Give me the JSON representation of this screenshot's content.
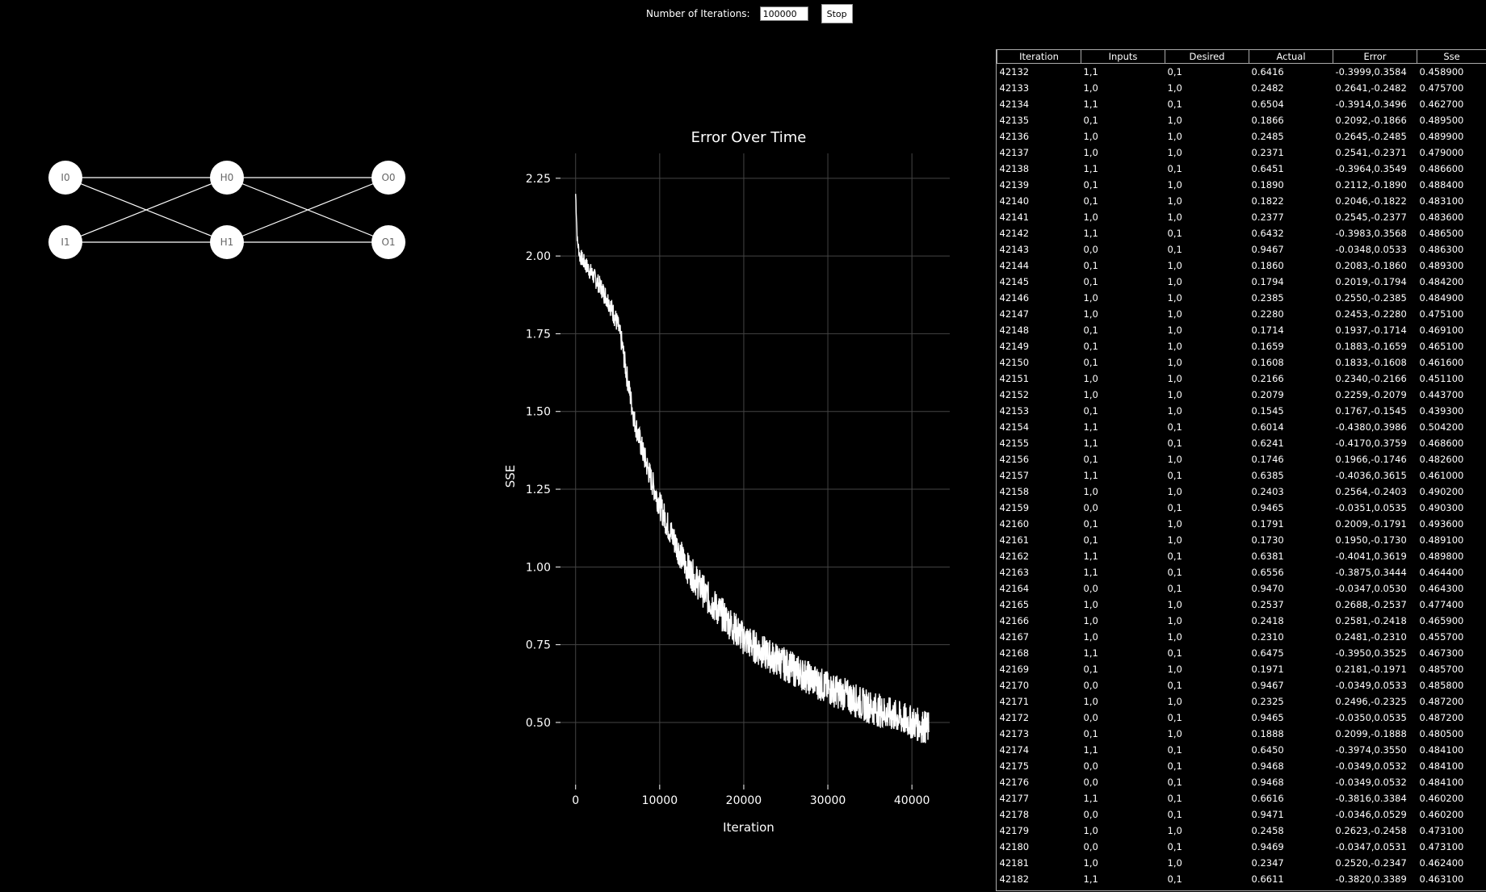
{
  "controls": {
    "iterations_label": "Number of Iterations:",
    "iterations_value": "100000",
    "stop_label": "Stop"
  },
  "network": {
    "input_nodes": [
      "I0",
      "I1"
    ],
    "hidden_nodes": [
      "H0",
      "H1"
    ],
    "output_nodes": [
      "O0",
      "O1"
    ]
  },
  "chart_data": {
    "type": "line",
    "title": "Error Over Time",
    "xlabel": "Iteration",
    "ylabel": "SSE",
    "xlim": [
      -1800,
      44500
    ],
    "ylim": [
      0.3,
      2.33
    ],
    "xticks": [
      0,
      10000,
      20000,
      30000,
      40000
    ],
    "xtick_labels": [
      "0",
      "10000",
      "20000",
      "30000",
      "40000"
    ],
    "yticks": [
      0.5,
      0.75,
      1.0,
      1.25,
      1.5,
      1.75,
      2.0,
      2.25
    ],
    "ytick_labels": [
      "0.50",
      "0.75",
      "1.00",
      "1.25",
      "1.50",
      "1.75",
      "2.00",
      "2.25"
    ],
    "grid": true,
    "series": [
      {
        "color": "#ffffff",
        "x": [
          0,
          200,
          500,
          1000,
          1500,
          2000,
          3000,
          4000,
          5000,
          5500,
          6000,
          6500,
          7000,
          7500,
          8000,
          9000,
          10000,
          11000,
          12000,
          13000,
          14000,
          15000,
          16000,
          17000,
          18000,
          19000,
          20000,
          22000,
          24000,
          26000,
          28000,
          30000,
          32000,
          34000,
          36000,
          38000,
          40000,
          42000
        ],
        "y": [
          2.2,
          2.05,
          2.0,
          1.98,
          1.96,
          1.94,
          1.9,
          1.85,
          1.78,
          1.72,
          1.63,
          1.55,
          1.47,
          1.42,
          1.37,
          1.28,
          1.2,
          1.13,
          1.07,
          1.01,
          0.97,
          0.93,
          0.89,
          0.86,
          0.83,
          0.8,
          0.77,
          0.73,
          0.7,
          0.67,
          0.64,
          0.61,
          0.59,
          0.56,
          0.54,
          0.52,
          0.5,
          0.48
        ]
      }
    ]
  },
  "table": {
    "columns": [
      "Iteration",
      "Inputs",
      "Desired",
      "Actual",
      "Error",
      "Sse"
    ],
    "rows": [
      [
        "42132",
        "1,1",
        "0,1",
        "0.6416",
        "-0.3999,0.3584",
        "0.458900"
      ],
      [
        "42133",
        "1,0",
        "1,0",
        "0.2482",
        "0.2641,-0.2482",
        "0.475700"
      ],
      [
        "42134",
        "1,1",
        "0,1",
        "0.6504",
        "-0.3914,0.3496",
        "0.462700"
      ],
      [
        "42135",
        "0,1",
        "1,0",
        "0.1866",
        "0.2092,-0.1866",
        "0.489500"
      ],
      [
        "42136",
        "1,0",
        "1,0",
        "0.2485",
        "0.2645,-0.2485",
        "0.489900"
      ],
      [
        "42137",
        "1,0",
        "1,0",
        "0.2371",
        "0.2541,-0.2371",
        "0.479000"
      ],
      [
        "42138",
        "1,1",
        "0,1",
        "0.6451",
        "-0.3964,0.3549",
        "0.486600"
      ],
      [
        "42139",
        "0,1",
        "1,0",
        "0.1890",
        "0.2112,-0.1890",
        "0.488400"
      ],
      [
        "42140",
        "0,1",
        "1,0",
        "0.1822",
        "0.2046,-0.1822",
        "0.483100"
      ],
      [
        "42141",
        "1,0",
        "1,0",
        "0.2377",
        "0.2545,-0.2377",
        "0.483600"
      ],
      [
        "42142",
        "1,1",
        "0,1",
        "0.6432",
        "-0.3983,0.3568",
        "0.486500"
      ],
      [
        "42143",
        "0,0",
        "0,1",
        "0.9467",
        "-0.0348,0.0533",
        "0.486300"
      ],
      [
        "42144",
        "0,1",
        "1,0",
        "0.1860",
        "0.2083,-0.1860",
        "0.489300"
      ],
      [
        "42145",
        "0,1",
        "1,0",
        "0.1794",
        "0.2019,-0.1794",
        "0.484200"
      ],
      [
        "42146",
        "1,0",
        "1,0",
        "0.2385",
        "0.2550,-0.2385",
        "0.484900"
      ],
      [
        "42147",
        "1,0",
        "1,0",
        "0.2280",
        "0.2453,-0.2280",
        "0.475100"
      ],
      [
        "42148",
        "0,1",
        "1,0",
        "0.1714",
        "0.1937,-0.1714",
        "0.469100"
      ],
      [
        "42149",
        "0,1",
        "1,0",
        "0.1659",
        "0.1883,-0.1659",
        "0.465100"
      ],
      [
        "42150",
        "0,1",
        "1,0",
        "0.1608",
        "0.1833,-0.1608",
        "0.461600"
      ],
      [
        "42151",
        "1,0",
        "1,0",
        "0.2166",
        "0.2340,-0.2166",
        "0.451100"
      ],
      [
        "42152",
        "1,0",
        "1,0",
        "0.2079",
        "0.2259,-0.2079",
        "0.443700"
      ],
      [
        "42153",
        "0,1",
        "1,0",
        "0.1545",
        "0.1767,-0.1545",
        "0.439300"
      ],
      [
        "42154",
        "1,1",
        "0,1",
        "0.6014",
        "-0.4380,0.3986",
        "0.504200"
      ],
      [
        "42155",
        "1,1",
        "0,1",
        "0.6241",
        "-0.4170,0.3759",
        "0.468600"
      ],
      [
        "42156",
        "0,1",
        "1,0",
        "0.1746",
        "0.1966,-0.1746",
        "0.482600"
      ],
      [
        "42157",
        "1,1",
        "0,1",
        "0.6385",
        "-0.4036,0.3615",
        "0.461000"
      ],
      [
        "42158",
        "1,0",
        "1,0",
        "0.2403",
        "0.2564,-0.2403",
        "0.490200"
      ],
      [
        "42159",
        "0,0",
        "0,1",
        "0.9465",
        "-0.0351,0.0535",
        "0.490300"
      ],
      [
        "42160",
        "0,1",
        "1,0",
        "0.1791",
        "0.2009,-0.1791",
        "0.493600"
      ],
      [
        "42161",
        "0,1",
        "1,0",
        "0.1730",
        "0.1950,-0.1730",
        "0.489100"
      ],
      [
        "42162",
        "1,1",
        "0,1",
        "0.6381",
        "-0.4041,0.3619",
        "0.489800"
      ],
      [
        "42163",
        "1,1",
        "0,1",
        "0.6556",
        "-0.3875,0.3444",
        "0.464400"
      ],
      [
        "42164",
        "0,0",
        "0,1",
        "0.9470",
        "-0.0347,0.0530",
        "0.464300"
      ],
      [
        "42165",
        "1,0",
        "1,0",
        "0.2537",
        "0.2688,-0.2537",
        "0.477400"
      ],
      [
        "42166",
        "1,0",
        "1,0",
        "0.2418",
        "0.2581,-0.2418",
        "0.465900"
      ],
      [
        "42167",
        "1,0",
        "1,0",
        "0.2310",
        "0.2481,-0.2310",
        "0.455700"
      ],
      [
        "42168",
        "1,1",
        "0,1",
        "0.6475",
        "-0.3950,0.3525",
        "0.467300"
      ],
      [
        "42169",
        "0,1",
        "1,0",
        "0.1971",
        "0.2181,-0.1971",
        "0.485700"
      ],
      [
        "42170",
        "0,0",
        "0,1",
        "0.9467",
        "-0.0349,0.0533",
        "0.485800"
      ],
      [
        "42171",
        "1,0",
        "1,0",
        "0.2325",
        "0.2496,-0.2325",
        "0.487200"
      ],
      [
        "42172",
        "0,0",
        "0,1",
        "0.9465",
        "-0.0350,0.0535",
        "0.487200"
      ],
      [
        "42173",
        "0,1",
        "1,0",
        "0.1888",
        "0.2099,-0.1888",
        "0.480500"
      ],
      [
        "42174",
        "1,1",
        "0,1",
        "0.6450",
        "-0.3974,0.3550",
        "0.484100"
      ],
      [
        "42175",
        "0,0",
        "0,1",
        "0.9468",
        "-0.0349,0.0532",
        "0.484100"
      ],
      [
        "42176",
        "0,0",
        "0,1",
        "0.9468",
        "-0.0349,0.0532",
        "0.484100"
      ],
      [
        "42177",
        "1,1",
        "0,1",
        "0.6616",
        "-0.3816,0.3384",
        "0.460200"
      ],
      [
        "42178",
        "0,0",
        "0,1",
        "0.9471",
        "-0.0346,0.0529",
        "0.460200"
      ],
      [
        "42179",
        "1,0",
        "1,0",
        "0.2458",
        "0.2623,-0.2458",
        "0.473100"
      ],
      [
        "42180",
        "0,0",
        "0,1",
        "0.9469",
        "-0.0347,0.0531",
        "0.473100"
      ],
      [
        "42181",
        "1,0",
        "1,0",
        "0.2347",
        "0.2520,-0.2347",
        "0.462400"
      ],
      [
        "42182",
        "1,1",
        "0,1",
        "0.6611",
        "-0.3820,0.3389",
        "0.463100"
      ]
    ]
  }
}
